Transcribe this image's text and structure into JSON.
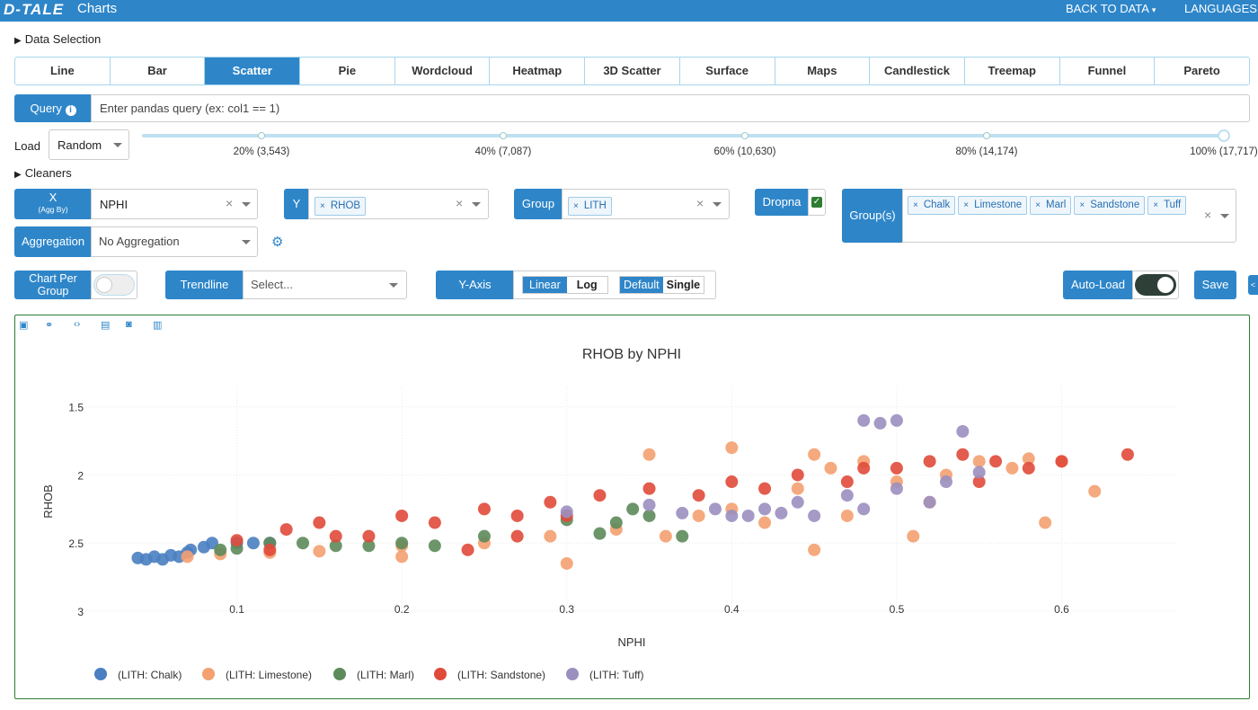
{
  "topbar": {
    "logo": "D-TALE",
    "title": "Charts",
    "back": "BACK TO DATA",
    "languages": "LANGUAGES"
  },
  "sections": {
    "data_selection": "Data Selection",
    "cleaners": "Cleaners"
  },
  "tabs": [
    "Line",
    "Bar",
    "Scatter",
    "Pie",
    "Wordcloud",
    "Heatmap",
    "3D Scatter",
    "Surface",
    "Maps",
    "Candlestick",
    "Treemap",
    "Funnel",
    "Pareto"
  ],
  "active_tab": "Scatter",
  "query": {
    "label": "Query",
    "placeholder": "Enter pandas query (ex: col1 == 1)"
  },
  "load": {
    "label": "Load",
    "value": "Random",
    "ticks": [
      "20% (3,543)",
      "40% (7,087)",
      "60% (10,630)",
      "80% (14,174)",
      "100% (17,717)"
    ],
    "fraction": 1.0
  },
  "x": {
    "label": "X",
    "sublabel": "(Agg By)",
    "value": "NPHI"
  },
  "y": {
    "label": "Y",
    "chip": "RHOB"
  },
  "group": {
    "label": "Group",
    "chip": "LITH"
  },
  "dropna": {
    "label": "Dropna",
    "checked": true
  },
  "groups": {
    "label": "Group(s)",
    "chips": [
      "Chalk",
      "Limestone",
      "Marl",
      "Sandstone",
      "Tuff"
    ]
  },
  "aggregation": {
    "label": "Aggregation",
    "value": "No Aggregation"
  },
  "chart_per_group": {
    "label_line1": "Chart Per",
    "label_line2": "Group",
    "on": false
  },
  "trendline": {
    "label": "Trendline",
    "placeholder": "Select..."
  },
  "yaxis": {
    "label": "Y-Axis",
    "scale_options": [
      "Linear",
      "Log"
    ],
    "scale_selected": "Linear",
    "mode_options": [
      "Default",
      "Single"
    ],
    "mode_selected": "Default"
  },
  "autoload": {
    "label": "Auto-Load",
    "on": true
  },
  "save_label": "Save",
  "chart_data": {
    "type": "scatter",
    "title": "RHOB by NPHI",
    "xlabel": "NPHI",
    "ylabel": "RHOB",
    "xlim": [
      0.0,
      0.67
    ],
    "ylim": [
      3.0,
      1.35
    ],
    "y_reversed": true,
    "xticks": [
      0.1,
      0.2,
      0.3,
      0.4,
      0.5,
      0.6
    ],
    "yticks": [
      1.5,
      2,
      2.5,
      3
    ],
    "grid": true,
    "legend_position": "bottom",
    "series": [
      {
        "name": "(LITH: Chalk)",
        "color": "#4a7fc1",
        "points": [
          [
            0.04,
            2.61
          ],
          [
            0.045,
            2.62
          ],
          [
            0.05,
            2.6
          ],
          [
            0.055,
            2.62
          ],
          [
            0.06,
            2.59
          ],
          [
            0.065,
            2.6
          ],
          [
            0.07,
            2.57
          ],
          [
            0.072,
            2.55
          ],
          [
            0.08,
            2.53
          ],
          [
            0.085,
            2.5
          ],
          [
            0.1,
            2.5
          ],
          [
            0.11,
            2.5
          ],
          [
            0.12,
            2.5
          ]
        ]
      },
      {
        "name": "(LITH: Limestone)",
        "color": "#f4a070",
        "points": [
          [
            0.07,
            2.6
          ],
          [
            0.09,
            2.58
          ],
          [
            0.12,
            2.57
          ],
          [
            0.15,
            2.56
          ],
          [
            0.2,
            2.52
          ],
          [
            0.25,
            2.5
          ],
          [
            0.29,
            2.45
          ],
          [
            0.33,
            2.4
          ],
          [
            0.36,
            2.45
          ],
          [
            0.38,
            2.3
          ],
          [
            0.4,
            2.25
          ],
          [
            0.42,
            2.35
          ],
          [
            0.44,
            2.1
          ],
          [
            0.45,
            2.55
          ],
          [
            0.47,
            2.3
          ],
          [
            0.5,
            2.05
          ],
          [
            0.52,
            2.2
          ],
          [
            0.55,
            1.9
          ],
          [
            0.57,
            1.95
          ],
          [
            0.59,
            2.35
          ],
          [
            0.6,
            1.9
          ],
          [
            0.62,
            2.12
          ],
          [
            0.35,
            1.85
          ],
          [
            0.4,
            1.8
          ],
          [
            0.45,
            1.85
          ],
          [
            0.48,
            1.9
          ],
          [
            0.3,
            2.65
          ],
          [
            0.2,
            2.6
          ],
          [
            0.46,
            1.95
          ],
          [
            0.51,
            2.45
          ],
          [
            0.53,
            2.0
          ],
          [
            0.58,
            1.88
          ]
        ]
      },
      {
        "name": "(LITH: Marl)",
        "color": "#5d8a5a",
        "points": [
          [
            0.09,
            2.55
          ],
          [
            0.1,
            2.54
          ],
          [
            0.12,
            2.5
          ],
          [
            0.14,
            2.5
          ],
          [
            0.16,
            2.52
          ],
          [
            0.18,
            2.52
          ],
          [
            0.2,
            2.5
          ],
          [
            0.22,
            2.52
          ],
          [
            0.25,
            2.45
          ],
          [
            0.3,
            2.33
          ],
          [
            0.32,
            2.43
          ],
          [
            0.35,
            2.3
          ],
          [
            0.37,
            2.45
          ],
          [
            0.33,
            2.35
          ],
          [
            0.34,
            2.25
          ]
        ]
      },
      {
        "name": "(LITH: Sandstone)",
        "color": "#e04a3a",
        "points": [
          [
            0.1,
            2.48
          ],
          [
            0.13,
            2.4
          ],
          [
            0.15,
            2.35
          ],
          [
            0.16,
            2.45
          ],
          [
            0.2,
            2.3
          ],
          [
            0.22,
            2.35
          ],
          [
            0.25,
            2.25
          ],
          [
            0.27,
            2.3
          ],
          [
            0.29,
            2.2
          ],
          [
            0.3,
            2.3
          ],
          [
            0.32,
            2.15
          ],
          [
            0.35,
            2.1
          ],
          [
            0.38,
            2.15
          ],
          [
            0.4,
            2.05
          ],
          [
            0.42,
            2.1
          ],
          [
            0.44,
            2.0
          ],
          [
            0.47,
            2.05
          ],
          [
            0.5,
            1.95
          ],
          [
            0.52,
            1.9
          ],
          [
            0.54,
            1.85
          ],
          [
            0.56,
            1.9
          ],
          [
            0.58,
            1.95
          ],
          [
            0.6,
            1.9
          ],
          [
            0.64,
            1.85
          ],
          [
            0.55,
            2.05
          ],
          [
            0.48,
            1.95
          ],
          [
            0.27,
            2.45
          ],
          [
            0.18,
            2.45
          ],
          [
            0.12,
            2.55
          ],
          [
            0.24,
            2.55
          ]
        ]
      },
      {
        "name": "(LITH: Tuff)",
        "color": "#9b8fc0",
        "points": [
          [
            0.3,
            2.27
          ],
          [
            0.35,
            2.22
          ],
          [
            0.37,
            2.28
          ],
          [
            0.39,
            2.25
          ],
          [
            0.4,
            2.3
          ],
          [
            0.42,
            2.25
          ],
          [
            0.44,
            2.2
          ],
          [
            0.45,
            2.3
          ],
          [
            0.47,
            2.15
          ],
          [
            0.48,
            2.25
          ],
          [
            0.5,
            2.1
          ],
          [
            0.52,
            2.2
          ],
          [
            0.53,
            2.05
          ],
          [
            0.55,
            1.98
          ],
          [
            0.48,
            1.6
          ],
          [
            0.49,
            1.62
          ],
          [
            0.5,
            1.6
          ],
          [
            0.54,
            1.68
          ],
          [
            0.43,
            2.28
          ],
          [
            0.41,
            2.3
          ]
        ]
      }
    ]
  }
}
